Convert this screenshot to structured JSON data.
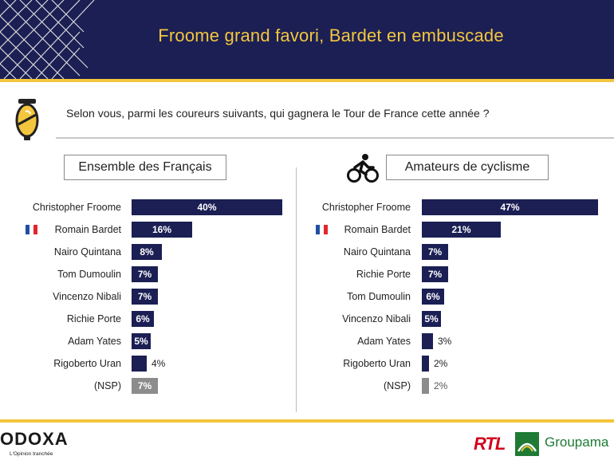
{
  "header": {
    "title": "Froome grand favori, Bardet en embuscade"
  },
  "question": "Selon vous, parmi les coureurs suivants, qui gagnera le Tour de France cette année ?",
  "colors": {
    "navy": "#1b1f54",
    "gold": "#f4c63d",
    "nsp_gray": "#8c8c8c"
  },
  "footer": {
    "brand": "ODOXA",
    "tagline": "L'Opinion tranchée",
    "partner1": "RTL",
    "partner2": "Groupama"
  },
  "chart_data": [
    {
      "type": "bar",
      "title": "Ensemble des Français",
      "unit": "%",
      "categories": [
        "Christopher Froome",
        "Romain Bardet",
        "Nairo Quintana",
        "Tom Dumoulin",
        "Vincenzo Nibali",
        "Richie Porte",
        "Adam Yates",
        "Rigoberto Uran",
        "(NSP)"
      ],
      "values": [
        40,
        16,
        8,
        7,
        7,
        6,
        5,
        4,
        7
      ],
      "labels": [
        "40%",
        "16%",
        "8%",
        "7%",
        "7%",
        "6%",
        "5%",
        "4%",
        "7%"
      ],
      "flag_category": "Romain Bardet"
    },
    {
      "type": "bar",
      "title": "Amateurs de cyclisme",
      "unit": "%",
      "categories": [
        "Christopher Froome",
        "Romain Bardet",
        "Nairo Quintana",
        "Richie Porte",
        "Tom Dumoulin",
        "Vincenzo Nibali",
        "Adam Yates",
        "Rigoberto Uran",
        "(NSP)"
      ],
      "values": [
        47,
        21,
        7,
        7,
        6,
        5,
        3,
        2,
        2
      ],
      "labels": [
        "47%",
        "21%",
        "7%",
        "7%",
        "6%",
        "5%",
        "3%",
        "2%",
        "2%"
      ],
      "flag_category": "Romain Bardet"
    }
  ]
}
